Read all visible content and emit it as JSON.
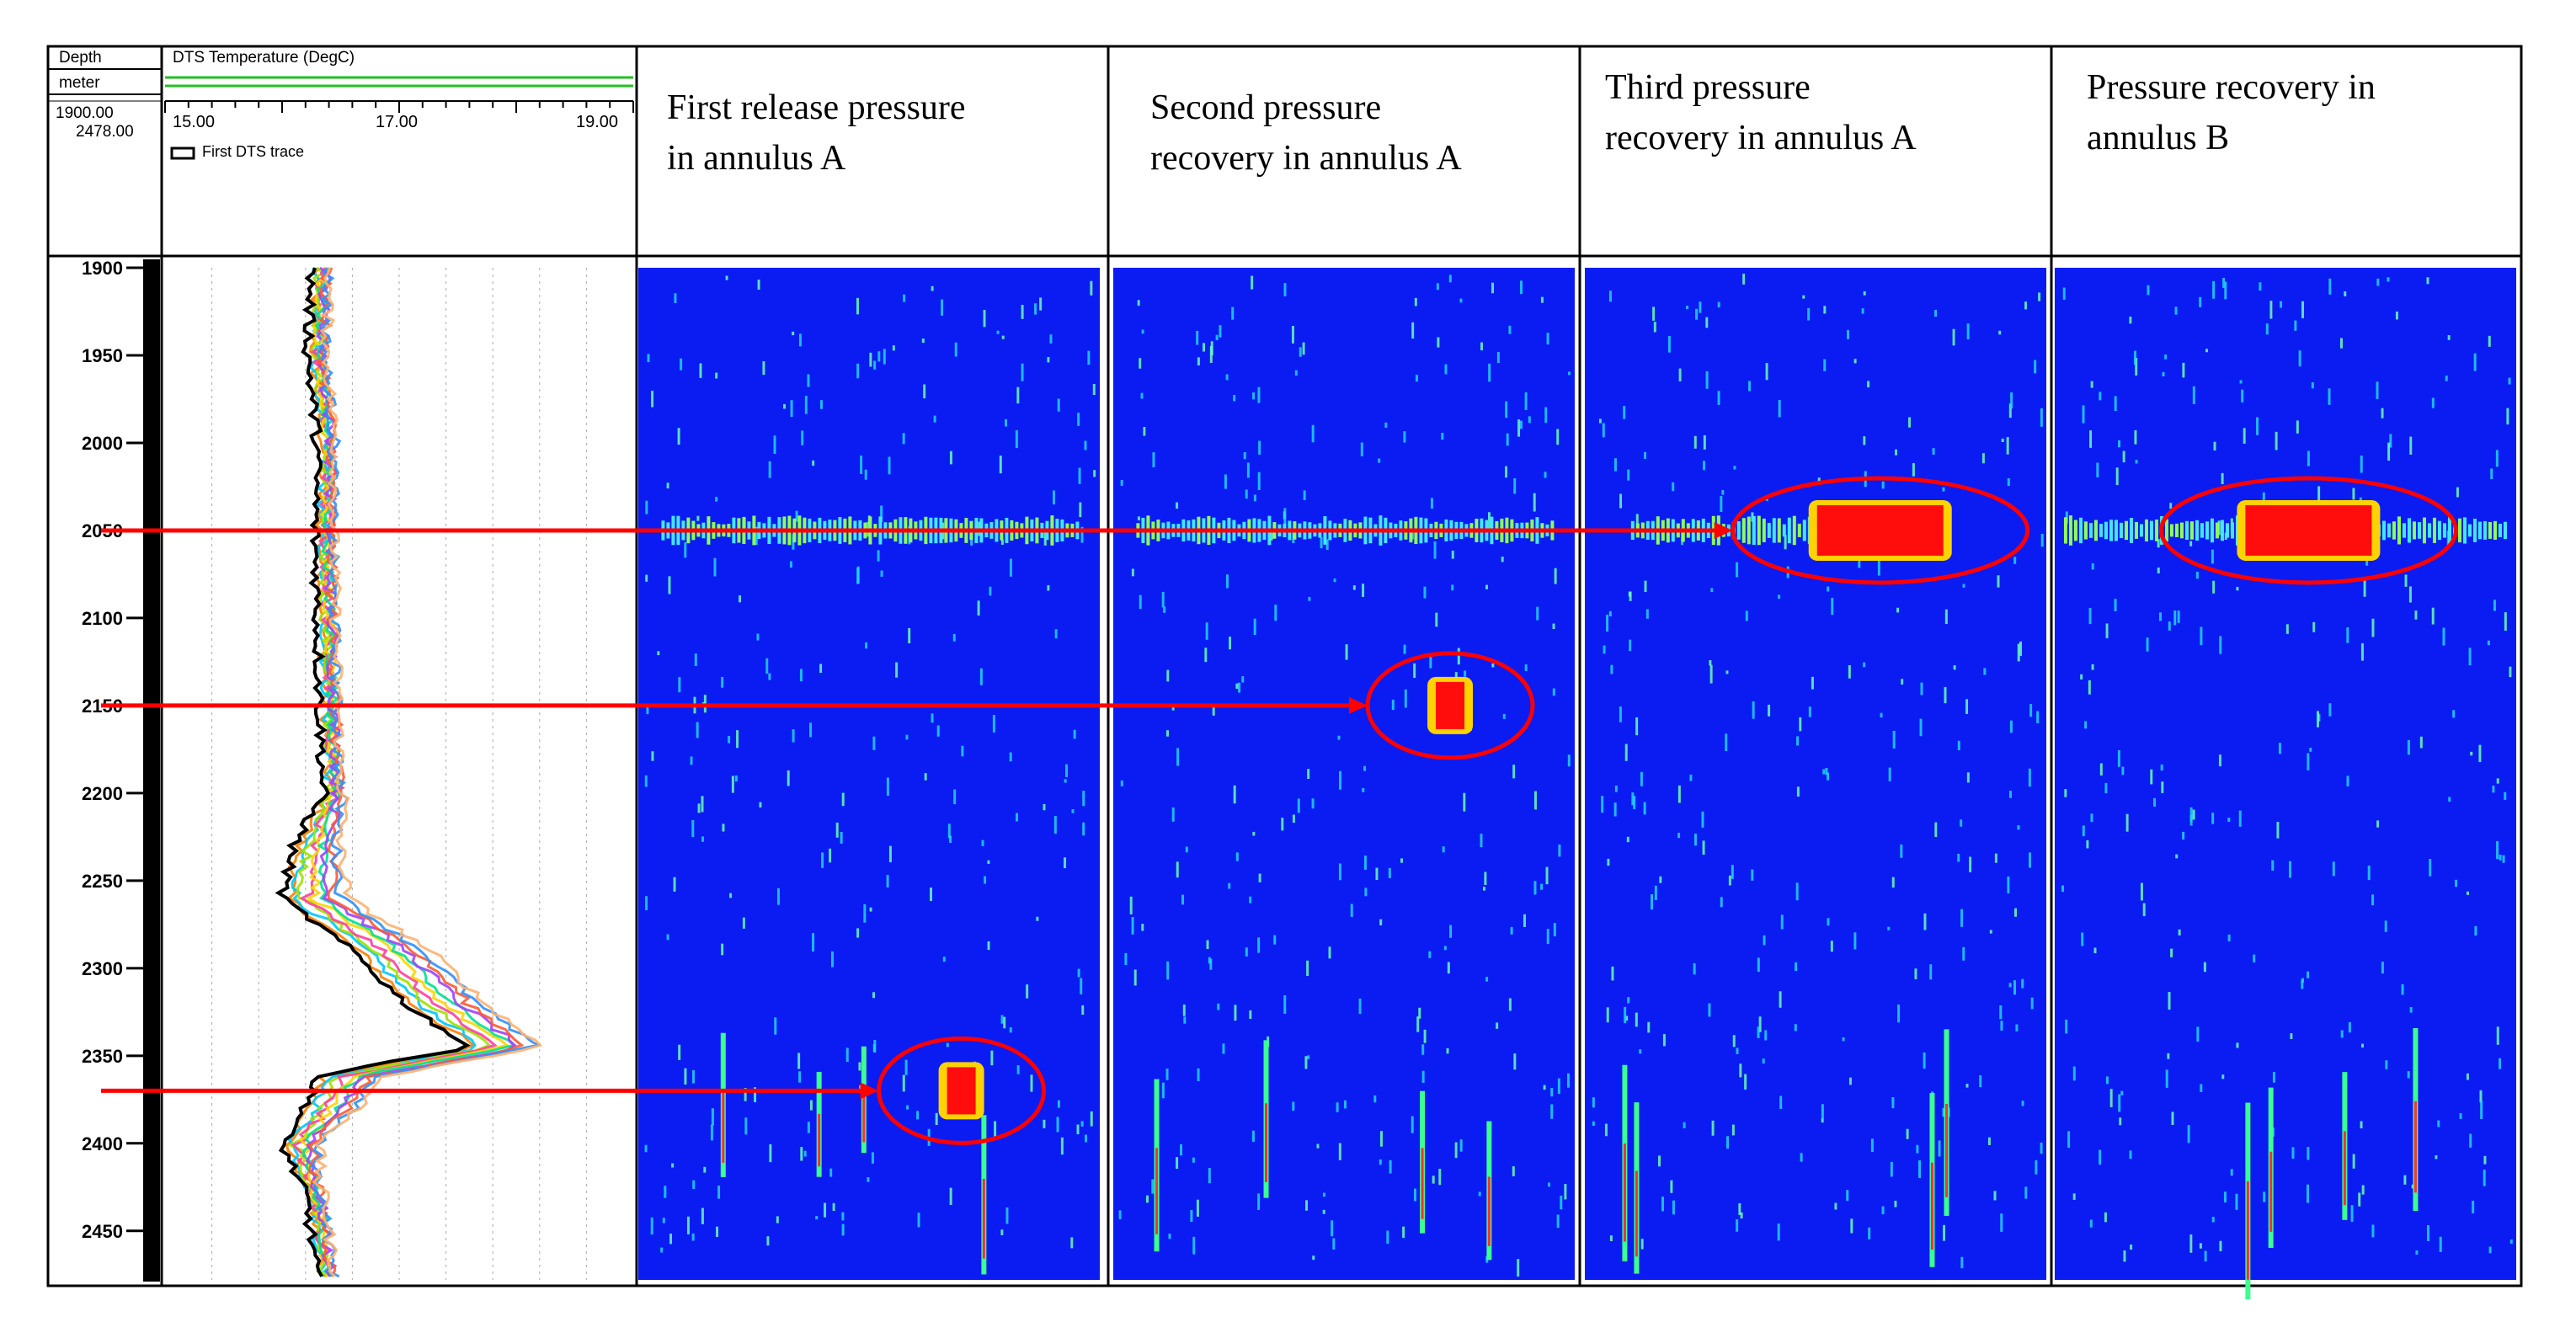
{
  "colors": {
    "panel_blue": "#0a1cf2",
    "arrow_red": "#ff0000",
    "hot_red": "#ff0d0d",
    "frame": "#000000",
    "track_green": "#22c022"
  },
  "header": {
    "depth_label": "Depth",
    "unit_label": "meter",
    "depth_top": "1900.00",
    "depth_bottom": "2478.00",
    "dts_title": "DTS Temperature (DegC)",
    "scale_ticks": [
      "15.00",
      "17.00",
      "19.00"
    ],
    "legend_label": "First DTS trace"
  },
  "columns": [
    {
      "title": "First release pressure\nin annulus A"
    },
    {
      "title": "Second pressure\nrecovery in annulus A"
    },
    {
      "title": "Third pressure\nrecovery in annulus A"
    },
    {
      "title": "Pressure recovery in\nannulus B"
    }
  ],
  "chart_data": {
    "type": "line",
    "series": [
      {
        "name": "First DTS trace"
      }
    ],
    "x_range": [
      15.0,
      19.0
    ],
    "depth_range": [
      1900,
      2478
    ],
    "depth_ticks": [
      "1900",
      "1950",
      "2000",
      "2050",
      "2100",
      "2150",
      "2200",
      "2250",
      "2300",
      "2350",
      "2400",
      "2450"
    ],
    "trace": {
      "depth": [
        1900,
        1950,
        2000,
        2050,
        2100,
        2150,
        2200,
        2230,
        2260,
        2290,
        2320,
        2345,
        2362,
        2380,
        2400,
        2430,
        2478
      ],
      "temp": [
        16.25,
        16.22,
        16.3,
        16.28,
        16.3,
        16.32,
        16.35,
        16.1,
        16.0,
        16.6,
        17.05,
        17.6,
        16.3,
        16.2,
        16.0,
        16.2,
        16.3
      ]
    },
    "annotated_depths": [
      2050,
      2150,
      2370
    ],
    "hot_zones": [
      {
        "panel": 0,
        "depth": 2370,
        "x_frac": 0.7
      },
      {
        "panel": 1,
        "depth": 2150,
        "x_frac": 0.73
      },
      {
        "panel": 2,
        "depth": 2050,
        "x_frac": 0.64
      },
      {
        "panel": 3,
        "depth": 2050,
        "x_frac": 0.55
      }
    ]
  }
}
